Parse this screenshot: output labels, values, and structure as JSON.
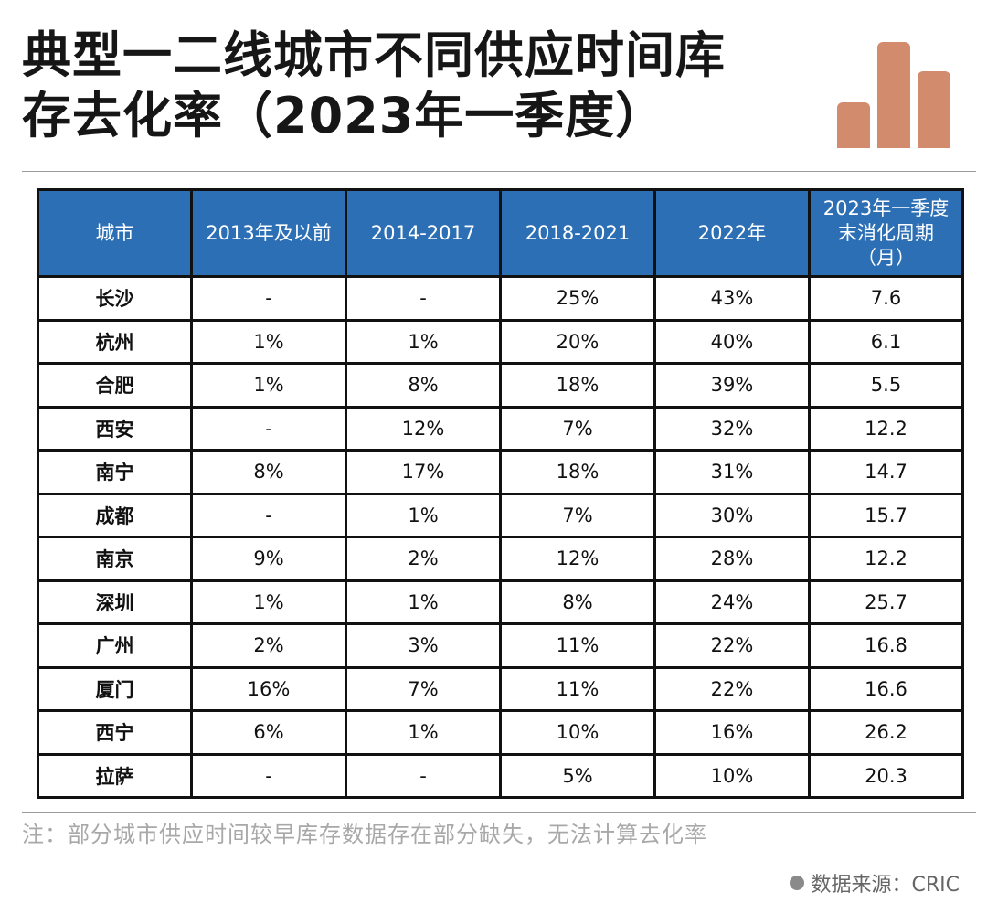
{
  "title": {
    "line1": "典型一二线城市不同供应时间库",
    "line2": "存去化率（2023年一季度）"
  },
  "logo": {
    "icon": "bar-chart-icon",
    "color": "#d38b6e"
  },
  "chart_data": {
    "type": "table",
    "columns": [
      "城市",
      "2013年及以前",
      "2014-2017",
      "2018-2021",
      "2022年",
      "2023年一季度末消化周期（月）"
    ],
    "rows": [
      [
        "长沙",
        "-",
        "-",
        "25%",
        "43%",
        "7.6"
      ],
      [
        "杭州",
        "1%",
        "1%",
        "20%",
        "40%",
        "6.1"
      ],
      [
        "合肥",
        "1%",
        "8%",
        "18%",
        "39%",
        "5.5"
      ],
      [
        "西安",
        "-",
        "12%",
        "7%",
        "32%",
        "12.2"
      ],
      [
        "南宁",
        "8%",
        "17%",
        "18%",
        "31%",
        "14.7"
      ],
      [
        "成都",
        "-",
        "1%",
        "7%",
        "30%",
        "15.7"
      ],
      [
        "南京",
        "9%",
        "2%",
        "12%",
        "28%",
        "12.2"
      ],
      [
        "深圳",
        "1%",
        "1%",
        "8%",
        "24%",
        "25.7"
      ],
      [
        "广州",
        "2%",
        "3%",
        "11%",
        "22%",
        "16.8"
      ],
      [
        "厦门",
        "16%",
        "7%",
        "11%",
        "22%",
        "16.6"
      ],
      [
        "西宁",
        "6%",
        "1%",
        "10%",
        "16%",
        "26.2"
      ],
      [
        "拉萨",
        "-",
        "-",
        "5%",
        "10%",
        "20.3"
      ]
    ]
  },
  "header_last": {
    "l1": "2023年一季度",
    "l2": "末消化周期",
    "l3": "（月）"
  },
  "note": "注：部分城市供应时间较早库存数据存在部分缺失，无法计算去化率",
  "source": "数据来源：CRIC",
  "colors": {
    "header_bg": "#2d6fb4",
    "accent": "#d38b6e"
  }
}
